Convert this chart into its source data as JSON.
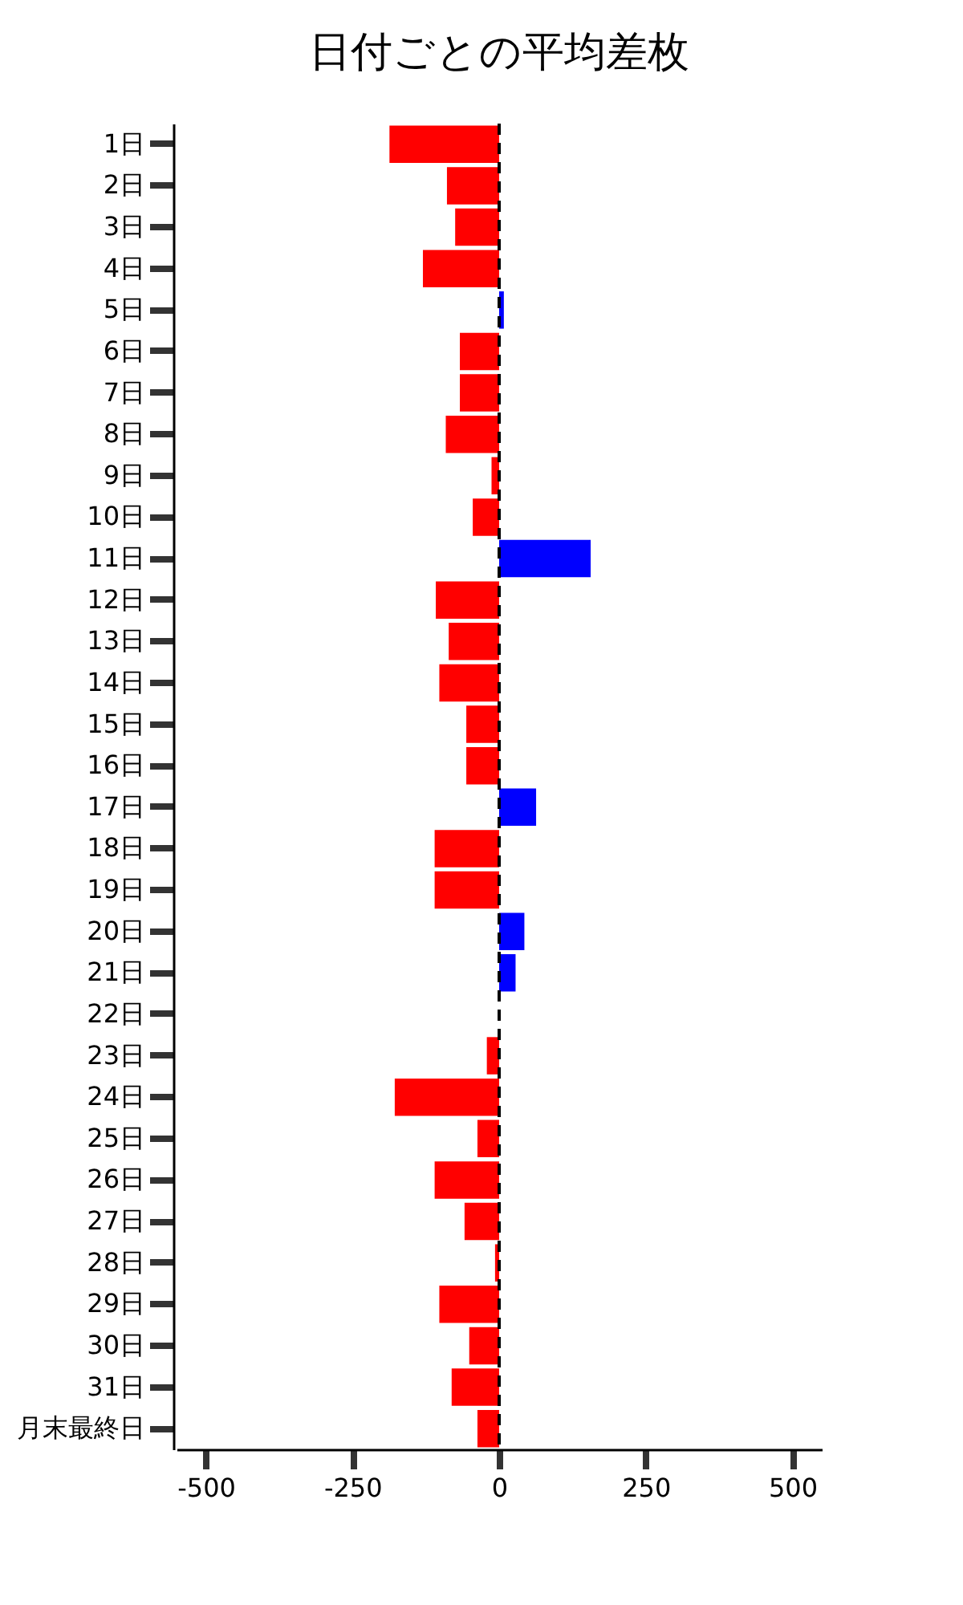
{
  "chart_data": {
    "type": "bar",
    "orientation": "horizontal",
    "title": "日付ごとの平均差枚",
    "categories": [
      "1日",
      "2日",
      "3日",
      "4日",
      "5日",
      "6日",
      "7日",
      "8日",
      "9日",
      "10日",
      "11日",
      "12日",
      "13日",
      "14日",
      "15日",
      "16日",
      "17日",
      "18日",
      "19日",
      "20日",
      "21日",
      "22日",
      "23日",
      "24日",
      "25日",
      "26日",
      "27日",
      "28日",
      "29日",
      "30日",
      "31日",
      "月末最終日"
    ],
    "values": [
      -187,
      -89,
      -75,
      -130,
      8,
      -67,
      -67,
      -91,
      -13,
      -45,
      156,
      -108,
      -86,
      -102,
      -56,
      -56,
      63,
      -110,
      -110,
      43,
      28,
      0,
      -21,
      -178,
      -37,
      -110,
      -59,
      -7,
      -102,
      -51,
      -81,
      -37
    ],
    "colors": [
      "#ff0000",
      "#ff0000",
      "#ff0000",
      "#ff0000",
      "#0000ff",
      "#ff0000",
      "#ff0000",
      "#ff0000",
      "#ff0000",
      "#ff0000",
      "#0000ff",
      "#ff0000",
      "#ff0000",
      "#ff0000",
      "#ff0000",
      "#ff0000",
      "#0000ff",
      "#ff0000",
      "#ff0000",
      "#0000ff",
      "#0000ff",
      "#ff0000",
      "#ff0000",
      "#ff0000",
      "#ff0000",
      "#ff0000",
      "#ff0000",
      "#ff0000",
      "#ff0000",
      "#ff0000",
      "#ff0000",
      "#ff0000"
    ],
    "xlim": [
      -550,
      550
    ],
    "xticks": [
      -500,
      -250,
      0,
      250,
      500
    ],
    "ref_lines": [
      {
        "axis": "x",
        "value": 0,
        "color": "#000000",
        "line_style": "dashed"
      }
    ]
  }
}
